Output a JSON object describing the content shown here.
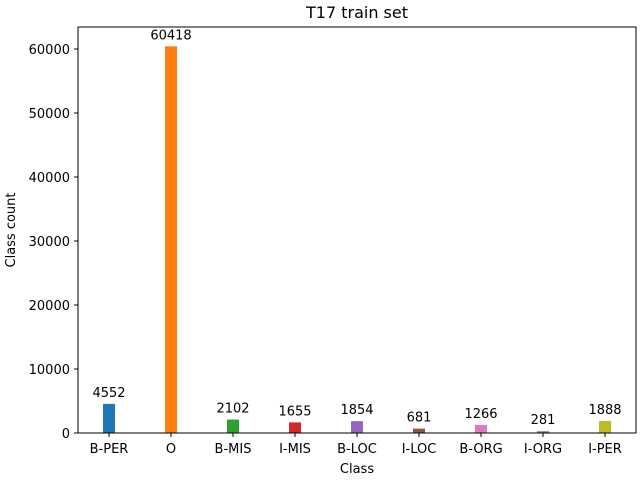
{
  "chart_data": {
    "type": "bar",
    "title": "T17 train set",
    "xlabel": "Class",
    "ylabel": "Class count",
    "categories": [
      "B-PER",
      "O",
      "B-MIS",
      "I-MIS",
      "B-LOC",
      "I-LOC",
      "B-ORG",
      "I-ORG",
      "I-PER"
    ],
    "values": [
      4552,
      60418,
      2102,
      1655,
      1854,
      681,
      1266,
      281,
      1888
    ],
    "data_labels": [
      "4552",
      "60418",
      "2102",
      "1655",
      "1854",
      "681",
      "1266",
      "281",
      "1888"
    ],
    "colors": [
      "#1f77b4",
      "#ff7f0e",
      "#2ca02c",
      "#d62728",
      "#9467bd",
      "#8c564b",
      "#e377c2",
      "#7f7f7f",
      "#bcbd22"
    ],
    "ylim": [
      0,
      63439
    ],
    "yticks": [
      0,
      10000,
      20000,
      30000,
      40000,
      50000,
      60000
    ],
    "ytick_labels": [
      "0",
      "10000",
      "20000",
      "30000",
      "40000",
      "50000",
      "60000"
    ],
    "grid": false,
    "legend": "none"
  }
}
